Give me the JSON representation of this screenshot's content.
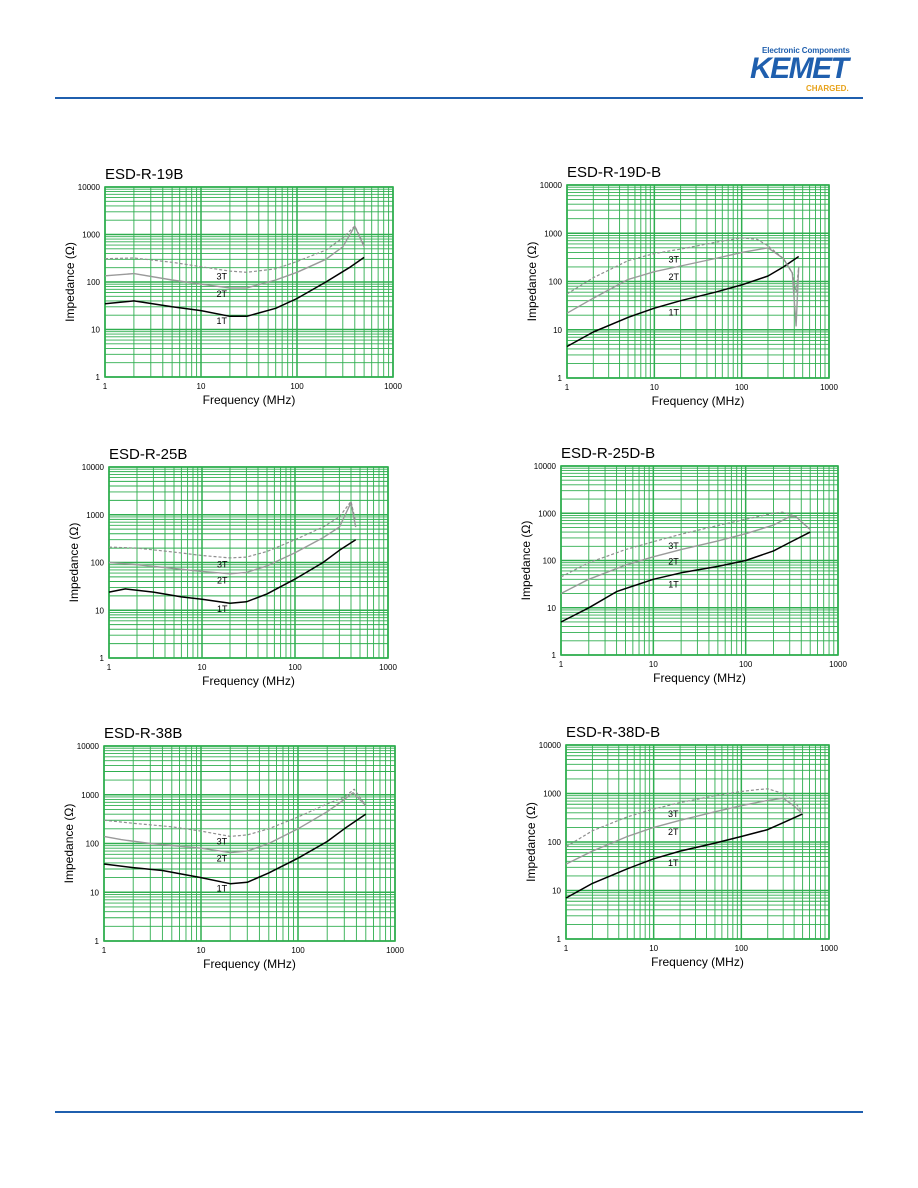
{
  "header": {
    "logo_tagline": "Electronic Components",
    "logo_name": "KEMET",
    "logo_slogan": "CHARGED."
  },
  "colors": {
    "grid": "#2fae4f",
    "rule": "#1f5fae",
    "series_1t": "#000000",
    "series_2t": "#9a9a9a",
    "series_3t": "#8f8f8f"
  },
  "chart_data": [
    {
      "type": "line",
      "title": "ESD-R-19B",
      "xlabel": "Frequency (MHz)",
      "ylabel": "Impedance (Ω)",
      "xscale": "log",
      "yscale": "log",
      "xlim": [
        1,
        1000
      ],
      "ylim": [
        1,
        10000
      ],
      "xticks": [
        "1",
        "10",
        "100",
        "1000"
      ],
      "yticks": [
        "1",
        "10",
        "100",
        "1000",
        "10000"
      ],
      "grid": true,
      "series": [
        {
          "name": "1T",
          "style": "solid-black",
          "x": [
            1,
            2,
            5,
            10,
            20,
            30,
            60,
            100,
            200,
            350,
            500
          ],
          "y": [
            35,
            40,
            30,
            25,
            19,
            19,
            28,
            45,
            100,
            200,
            330
          ]
        },
        {
          "name": "2T",
          "style": "solid-gray",
          "x": [
            1,
            2,
            5,
            10,
            20,
            30,
            60,
            100,
            200,
            300,
            400,
            500
          ],
          "y": [
            135,
            150,
            110,
            90,
            75,
            75,
            110,
            160,
            300,
            550,
            1500,
            550
          ]
        },
        {
          "name": "3T",
          "style": "dashed-gray",
          "x": [
            1,
            2,
            5,
            10,
            20,
            30,
            60,
            100,
            200,
            300,
            400,
            500
          ],
          "y": [
            310,
            320,
            260,
            210,
            170,
            160,
            190,
            270,
            470,
            850,
            1500,
            600
          ]
        }
      ]
    },
    {
      "type": "line",
      "title": "ESD-R-19D-B",
      "xlabel": "Frequency (MHz)",
      "ylabel": "Impedance (Ω)",
      "xscale": "log",
      "yscale": "log",
      "xlim": [
        1,
        1000
      ],
      "ylim": [
        1,
        10000
      ],
      "xticks": [
        "1",
        "10",
        "100",
        "1000"
      ],
      "yticks": [
        "1",
        "10",
        "100",
        "1000",
        "10000"
      ],
      "grid": true,
      "series": [
        {
          "name": "1T",
          "style": "solid-black",
          "x": [
            1,
            2,
            5,
            10,
            20,
            50,
            100,
            200,
            300,
            450
          ],
          "y": [
            4.5,
            9,
            18,
            28,
            40,
            60,
            85,
            130,
            200,
            330
          ]
        },
        {
          "name": "2T",
          "style": "solid-gray",
          "x": [
            1,
            2,
            5,
            10,
            20,
            50,
            100,
            200,
            300,
            380,
            420,
            450
          ],
          "y": [
            22,
            45,
            110,
            160,
            210,
            300,
            400,
            500,
            300,
            150,
            12,
            200
          ]
        },
        {
          "name": "3T",
          "style": "dashed-gray",
          "x": [
            1,
            2,
            5,
            10,
            20,
            50,
            100,
            150,
            200,
            300,
            380,
            420,
            450
          ],
          "y": [
            55,
            120,
            270,
            380,
            470,
            650,
            800,
            750,
            550,
            300,
            150,
            60,
            200
          ]
        }
      ]
    },
    {
      "type": "line",
      "title": "ESD-R-25B",
      "xlabel": "Frequency (MHz)",
      "ylabel": "Impedance (Ω)",
      "xscale": "log",
      "yscale": "log",
      "xlim": [
        1,
        1000
      ],
      "ylim": [
        1,
        10000
      ],
      "xticks": [
        "1",
        "10",
        "100",
        "1000"
      ],
      "yticks": [
        "1",
        "10",
        "100",
        "1000",
        "10000"
      ],
      "grid": true,
      "series": [
        {
          "name": "1T",
          "style": "solid-black",
          "x": [
            1,
            1.5,
            3,
            6,
            10,
            20,
            30,
            50,
            100,
            200,
            300,
            450
          ],
          "y": [
            24,
            28,
            24,
            19,
            17,
            14,
            15,
            22,
            45,
            100,
            180,
            300
          ]
        },
        {
          "name": "2T",
          "style": "solid-gray",
          "x": [
            1,
            2,
            5,
            10,
            20,
            30,
            50,
            100,
            200,
            300,
            400,
            450
          ],
          "y": [
            100,
            90,
            75,
            65,
            58,
            62,
            85,
            160,
            330,
            550,
            1800,
            550
          ]
        },
        {
          "name": "3T",
          "style": "dashed-gray",
          "x": [
            1,
            2,
            5,
            10,
            20,
            30,
            50,
            100,
            200,
            300,
            400,
            450
          ],
          "y": [
            210,
            200,
            165,
            140,
            125,
            130,
            170,
            300,
            550,
            900,
            1900,
            700
          ]
        }
      ]
    },
    {
      "type": "line",
      "title": "ESD-R-25D-B",
      "xlabel": "Frequency (MHz)",
      "ylabel": "Impedance (Ω)",
      "xscale": "log",
      "yscale": "log",
      "xlim": [
        1,
        1000
      ],
      "ylim": [
        1,
        10000
      ],
      "xticks": [
        "1",
        "10",
        "100",
        "1000"
      ],
      "yticks": [
        "1",
        "10",
        "100",
        "1000",
        "10000"
      ],
      "grid": true,
      "series": [
        {
          "name": "1T",
          "style": "solid-black",
          "x": [
            1,
            2,
            4,
            10,
            20,
            50,
            100,
            200,
            300,
            500
          ],
          "y": [
            5,
            10,
            22,
            40,
            55,
            75,
            100,
            160,
            240,
            400
          ]
        },
        {
          "name": "2T",
          "style": "solid-gray",
          "x": [
            1,
            2,
            5,
            10,
            20,
            50,
            100,
            200,
            300,
            350,
            500
          ],
          "y": [
            20,
            40,
            80,
            120,
            170,
            260,
            370,
            560,
            850,
            850,
            450
          ]
        },
        {
          "name": "3T",
          "style": "dashed-gray",
          "x": [
            1,
            2,
            5,
            10,
            20,
            50,
            100,
            200,
            250,
            300,
            350,
            500
          ],
          "y": [
            45,
            90,
            170,
            250,
            360,
            550,
            750,
            1000,
            1050,
            950,
            850,
            450
          ]
        }
      ]
    },
    {
      "type": "line",
      "title": "ESD-R-38B",
      "xlabel": "Frequency (MHz)",
      "ylabel": "Impedance (Ω)",
      "xscale": "log",
      "yscale": "log",
      "xlim": [
        1,
        1000
      ],
      "ylim": [
        1,
        10000
      ],
      "xticks": [
        "1",
        "10",
        "100",
        "1000"
      ],
      "yticks": [
        "1",
        "10",
        "100",
        "1000",
        "10000"
      ],
      "grid": true,
      "series": [
        {
          "name": "1T",
          "style": "solid-black",
          "x": [
            1,
            2,
            4,
            10,
            20,
            30,
            50,
            100,
            200,
            300,
            500
          ],
          "y": [
            38,
            32,
            28,
            20,
            15,
            16,
            25,
            50,
            110,
            200,
            400
          ]
        },
        {
          "name": "2T",
          "style": "solid-gray",
          "x": [
            1,
            1.5,
            3,
            10,
            20,
            30,
            50,
            100,
            200,
            300,
            370,
            500
          ],
          "y": [
            140,
            120,
            100,
            80,
            65,
            70,
            100,
            200,
            450,
            800,
            1100,
            600
          ]
        },
        {
          "name": "3T",
          "style": "dashed-gray",
          "x": [
            1,
            2,
            5,
            10,
            20,
            30,
            50,
            100,
            200,
            300,
            380,
            500
          ],
          "y": [
            300,
            260,
            220,
            180,
            140,
            150,
            200,
            350,
            650,
            900,
            1300,
            600
          ]
        }
      ]
    },
    {
      "type": "line",
      "title": "ESD-R-38D-B",
      "xlabel": "Frequency (MHz)",
      "ylabel": "Impedance (Ω)",
      "xscale": "log",
      "yscale": "log",
      "xlim": [
        1,
        1000
      ],
      "ylim": [
        1,
        10000
      ],
      "xticks": [
        "1",
        "10",
        "100",
        "1000"
      ],
      "yticks": [
        "1",
        "10",
        "100",
        "1000",
        "10000"
      ],
      "grid": true,
      "series": [
        {
          "name": "1T",
          "style": "solid-black",
          "x": [
            1,
            2,
            5,
            10,
            20,
            50,
            100,
            200,
            300,
            500
          ],
          "y": [
            7,
            14,
            28,
            45,
            65,
            95,
            130,
            180,
            250,
            380
          ]
        },
        {
          "name": "2T",
          "style": "solid-gray",
          "x": [
            1,
            2,
            5,
            10,
            20,
            50,
            100,
            200,
            300,
            400,
            500
          ],
          "y": [
            35,
            65,
            130,
            200,
            280,
            420,
            560,
            720,
            800,
            550,
            380
          ]
        },
        {
          "name": "3T",
          "style": "dashed-gray",
          "x": [
            1,
            2,
            5,
            10,
            20,
            50,
            100,
            150,
            200,
            300,
            400,
            500
          ],
          "y": [
            80,
            170,
            330,
            480,
            650,
            900,
            1100,
            1200,
            1250,
            1000,
            700,
            400
          ]
        }
      ]
    }
  ]
}
